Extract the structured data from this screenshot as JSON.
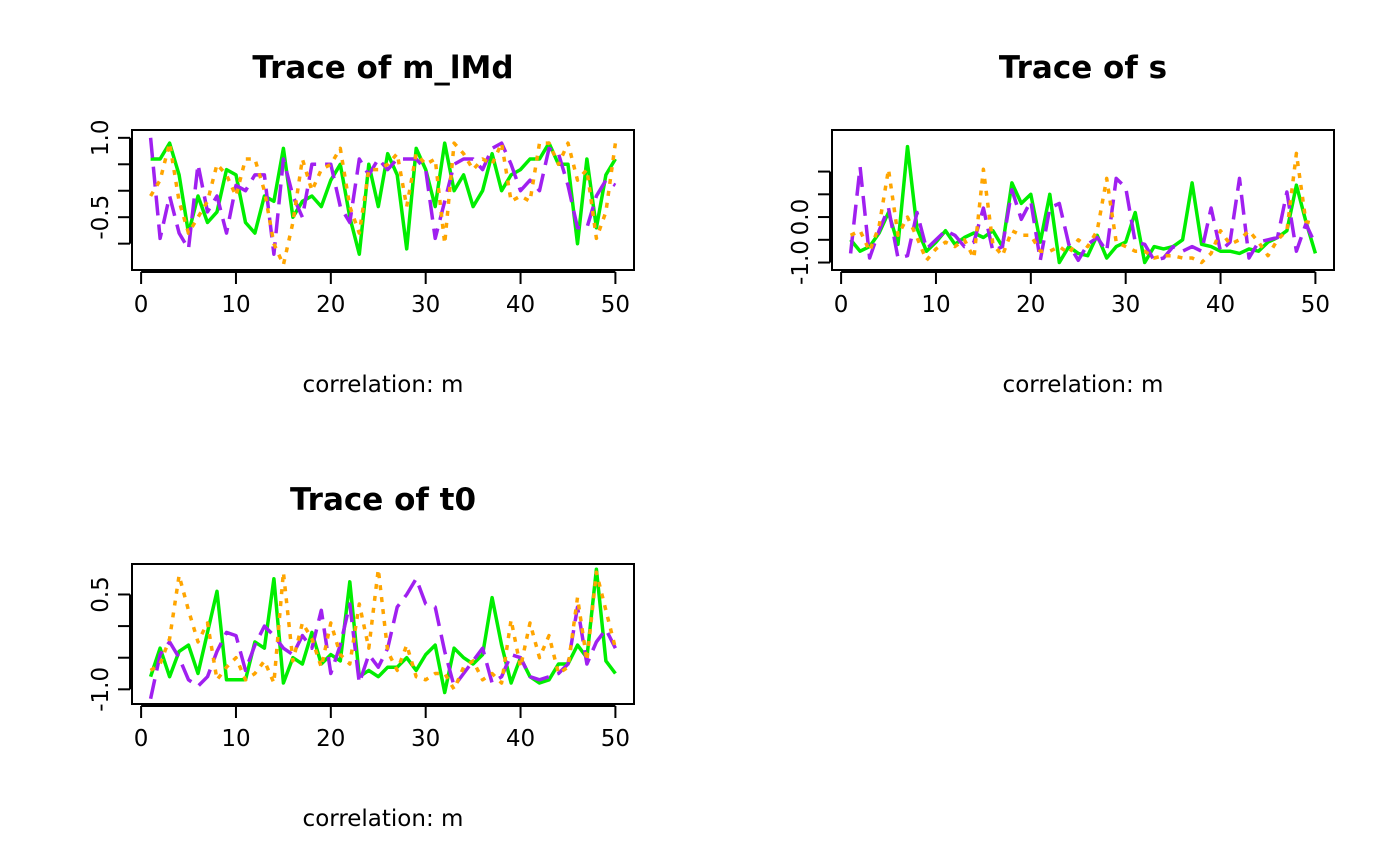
{
  "chart_data": [
    {
      "type": "line",
      "title": "Trace of m_lMd",
      "xlabel": "correlation: m",
      "ylabel": "",
      "xlim": [
        1,
        50
      ],
      "ylim": [
        -1.4,
        1.05
      ],
      "xticks": [
        0,
        10,
        20,
        30,
        40,
        50
      ],
      "xtick_labels": [
        "0",
        "10",
        "20",
        "30",
        "40",
        "50"
      ],
      "yticks": [
        -1.0,
        -0.5,
        0.0,
        0.5,
        1.0
      ],
      "ytick_labels": [
        "",
        "-0.5",
        "",
        "",
        "1.0"
      ],
      "grid": false,
      "x": [
        1,
        2,
        3,
        4,
        5,
        6,
        7,
        8,
        9,
        10,
        11,
        12,
        13,
        14,
        15,
        16,
        17,
        18,
        19,
        20,
        21,
        22,
        23,
        24,
        25,
        26,
        27,
        28,
        29,
        30,
        31,
        32,
        33,
        34,
        35,
        36,
        37,
        38,
        39,
        40,
        41,
        42,
        43,
        44,
        45,
        46,
        47,
        48,
        49,
        50
      ],
      "series": [
        {
          "color": "#00EE00",
          "dash": "solid",
          "values": [
            0.6,
            0.6,
            0.9,
            0.3,
            -0.8,
            -0.1,
            -0.6,
            -0.4,
            0.4,
            0.3,
            -0.6,
            -0.8,
            -0.1,
            -0.2,
            0.8,
            -0.5,
            -0.2,
            -0.1,
            -0.3,
            0.2,
            0.5,
            -0.5,
            -1.2,
            0.5,
            -0.3,
            0.7,
            0.3,
            -1.1,
            0.8,
            0.4,
            -0.3,
            0.9,
            0.0,
            0.3,
            -0.3,
            0.0,
            0.7,
            0.0,
            0.3,
            0.4,
            0.6,
            0.6,
            0.9,
            0.5,
            0.5,
            -1.0,
            0.6,
            -0.7,
            0.3,
            0.6
          ]
        },
        {
          "color": "#A020F0",
          "dash": "dashed",
          "values": [
            1.0,
            -0.9,
            -0.1,
            -0.8,
            -1.1,
            0.5,
            -0.4,
            -0.1,
            -0.8,
            0.1,
            0.0,
            0.3,
            0.3,
            -1.2,
            0.6,
            -0.1,
            -0.5,
            0.5,
            0.5,
            0.5,
            -0.3,
            -0.6,
            0.6,
            0.3,
            0.6,
            0.4,
            0.6,
            0.6,
            0.6,
            0.4,
            -0.9,
            -0.2,
            0.5,
            0.6,
            0.6,
            0.4,
            0.8,
            0.9,
            0.5,
            0.0,
            0.2,
            0.0,
            0.8,
            0.7,
            0.1,
            -0.7,
            -0.7,
            -0.1,
            0.2,
            0.1
          ]
        },
        {
          "color": "#FFA500",
          "dash": "dotted",
          "values": [
            -0.1,
            0.2,
            0.9,
            -0.2,
            -0.8,
            -0.5,
            -0.2,
            0.5,
            0.3,
            -0.1,
            0.6,
            0.6,
            0.0,
            -1.0,
            -1.4,
            -0.6,
            0.6,
            0.0,
            0.4,
            0.5,
            0.8,
            -0.3,
            -0.8,
            0.4,
            0.4,
            0.5,
            0.7,
            -0.3,
            0.7,
            0.5,
            0.6,
            -1.0,
            0.9,
            0.7,
            0.4,
            0.6,
            0.5,
            0.9,
            -0.2,
            -0.1,
            -0.2,
            0.9,
            0.9,
            0.5,
            0.9,
            0.2,
            0.4,
            -0.9,
            -0.4,
            0.9
          ]
        }
      ]
    },
    {
      "type": "line",
      "title": "Trace of s",
      "xlabel": "correlation: m",
      "ylabel": "",
      "xlim": [
        1,
        50
      ],
      "ylim": [
        -1.05,
        1.8
      ],
      "xticks": [
        0,
        10,
        20,
        30,
        40,
        50
      ],
      "xtick_labels": [
        "0",
        "10",
        "20",
        "30",
        "40",
        "50"
      ],
      "yticks": [
        -1.0,
        -0.5,
        0.0,
        0.5,
        1.0
      ],
      "ytick_labels": [
        "-1.0",
        "",
        "0.0",
        "",
        ""
      ],
      "grid": false,
      "x": [
        1,
        2,
        3,
        4,
        5,
        6,
        7,
        8,
        9,
        10,
        11,
        12,
        13,
        14,
        15,
        16,
        17,
        18,
        19,
        20,
        21,
        22,
        23,
        24,
        25,
        26,
        27,
        28,
        29,
        30,
        31,
        32,
        33,
        34,
        35,
        36,
        37,
        38,
        39,
        40,
        41,
        42,
        43,
        44,
        45,
        46,
        47,
        48,
        49,
        50
      ],
      "series": [
        {
          "color": "#00EE00",
          "dash": "solid",
          "values": [
            -0.5,
            -0.75,
            -0.65,
            -0.35,
            0.1,
            -0.6,
            1.55,
            -0.25,
            -0.75,
            -0.55,
            -0.3,
            -0.6,
            -0.45,
            -0.35,
            -0.45,
            -0.3,
            -0.65,
            0.75,
            0.3,
            0.5,
            -0.55,
            0.5,
            -1.0,
            -0.65,
            -0.8,
            -0.85,
            -0.4,
            -0.9,
            -0.65,
            -0.55,
            0.1,
            -1.0,
            -0.65,
            -0.7,
            -0.65,
            -0.5,
            0.75,
            -0.6,
            -0.65,
            -0.75,
            -0.75,
            -0.8,
            -0.7,
            -0.75,
            -0.55,
            -0.45,
            -0.3,
            0.7,
            -0.1,
            -0.8
          ]
        },
        {
          "color": "#A020F0",
          "dash": "dashed",
          "values": [
            -0.8,
            1.1,
            -0.9,
            -0.3,
            0.2,
            -0.9,
            -0.85,
            0.1,
            -0.7,
            -0.5,
            -0.3,
            -0.4,
            -0.65,
            -0.55,
            0.2,
            -0.75,
            -0.65,
            0.6,
            -0.05,
            0.35,
            -0.95,
            0.2,
            0.3,
            -0.6,
            -0.95,
            -0.6,
            -0.45,
            -0.75,
            0.85,
            0.65,
            -0.55,
            -0.6,
            -0.95,
            -0.9,
            -0.65,
            -0.75,
            -0.65,
            -0.75,
            0.2,
            -0.75,
            -0.55,
            0.85,
            -0.9,
            -0.55,
            -0.5,
            -0.45,
            0.55,
            -0.75,
            -0.15,
            -0.6
          ]
        },
        {
          "color": "#FFA500",
          "dash": "dotted",
          "values": [
            -0.4,
            -0.3,
            -0.75,
            -0.2,
            1.05,
            -0.4,
            0.0,
            -0.45,
            -0.95,
            -0.7,
            -0.55,
            -0.65,
            -0.5,
            -0.9,
            1.05,
            -0.6,
            -0.85,
            -0.3,
            -0.4,
            -0.4,
            -0.75,
            -0.75,
            -0.65,
            -0.8,
            -0.5,
            -0.65,
            -0.3,
            0.85,
            -0.55,
            -0.65,
            -0.75,
            -0.75,
            -0.9,
            -0.85,
            -0.85,
            -0.9,
            -0.9,
            -1.0,
            -0.8,
            -0.3,
            -0.6,
            -0.5,
            -0.3,
            -0.55,
            -0.85,
            -0.5,
            -0.3,
            1.4,
            -0.1,
            -0.15
          ]
        }
      ]
    },
    {
      "type": "line",
      "title": "Trace of t0",
      "xlabel": "correlation: m",
      "ylabel": "",
      "xlim": [
        1,
        50
      ],
      "ylim": [
        -1.15,
        0.9
      ],
      "xticks": [
        0,
        10,
        20,
        30,
        40,
        50
      ],
      "xtick_labels": [
        "0",
        "10",
        "20",
        "30",
        "40",
        "50"
      ],
      "yticks": [
        -1.0,
        -0.5,
        0.0,
        0.5
      ],
      "ytick_labels": [
        "-1.0",
        "",
        "",
        "0.5"
      ],
      "grid": false,
      "x": [
        1,
        2,
        3,
        4,
        5,
        6,
        7,
        8,
        9,
        10,
        11,
        12,
        13,
        14,
        15,
        16,
        17,
        18,
        19,
        20,
        21,
        22,
        23,
        24,
        25,
        26,
        27,
        28,
        29,
        30,
        31,
        32,
        33,
        34,
        35,
        36,
        37,
        38,
        39,
        40,
        41,
        42,
        43,
        44,
        45,
        46,
        47,
        48,
        49,
        50
      ],
      "series": [
        {
          "color": "#00EE00",
          "dash": "solid",
          "values": [
            -0.8,
            -0.35,
            -0.8,
            -0.4,
            -0.3,
            -0.75,
            -0.1,
            0.55,
            -0.85,
            -0.85,
            -0.85,
            -0.25,
            -0.35,
            0.75,
            -0.9,
            -0.5,
            -0.6,
            -0.1,
            -0.6,
            -0.45,
            -0.55,
            0.7,
            -0.8,
            -0.7,
            -0.8,
            -0.65,
            -0.65,
            -0.5,
            -0.7,
            -0.45,
            -0.3,
            -1.05,
            -0.35,
            -0.5,
            -0.6,
            -0.45,
            0.45,
            -0.3,
            -0.9,
            -0.5,
            -0.8,
            -0.9,
            -0.85,
            -0.6,
            -0.6,
            -0.3,
            -0.5,
            0.9,
            -0.55,
            -0.75
          ]
        },
        {
          "color": "#A020F0",
          "dash": "dashed",
          "values": [
            -1.15,
            -0.45,
            -0.25,
            -0.5,
            -0.85,
            -0.95,
            -0.8,
            -0.4,
            -0.1,
            -0.15,
            -0.7,
            -0.3,
            0.0,
            -0.15,
            -0.35,
            -0.45,
            -0.15,
            -0.35,
            0.25,
            -0.75,
            -0.3,
            0.35,
            -0.9,
            -0.45,
            -0.65,
            -0.35,
            0.3,
            0.5,
            0.75,
            0.35,
            0.3,
            -0.4,
            -0.95,
            -0.75,
            -0.55,
            -0.35,
            -0.9,
            -0.8,
            -0.45,
            -0.5,
            -0.8,
            -0.85,
            -0.8,
            -0.75,
            -0.6,
            0.3,
            -0.6,
            -0.25,
            -0.05,
            -0.35
          ]
        },
        {
          "color": "#FFA500",
          "dash": "dotted",
          "values": [
            -0.7,
            -0.6,
            -0.2,
            0.8,
            0.25,
            -0.25,
            0.05,
            -0.85,
            -0.65,
            -0.5,
            -0.85,
            -0.75,
            -0.55,
            -0.9,
            0.85,
            -0.55,
            0.05,
            -0.2,
            -0.65,
            0.05,
            -0.45,
            -0.6,
            0.35,
            -0.35,
            0.9,
            -0.4,
            -0.7,
            -0.3,
            -0.8,
            -0.85,
            -0.75,
            -0.75,
            -1.0,
            -0.65,
            -0.55,
            -0.85,
            -0.75,
            -0.9,
            0.1,
            -0.65,
            0.05,
            -0.5,
            -0.15,
            -0.75,
            -0.65,
            0.45,
            -0.55,
            0.85,
            0.25,
            -0.35
          ]
        }
      ]
    }
  ]
}
